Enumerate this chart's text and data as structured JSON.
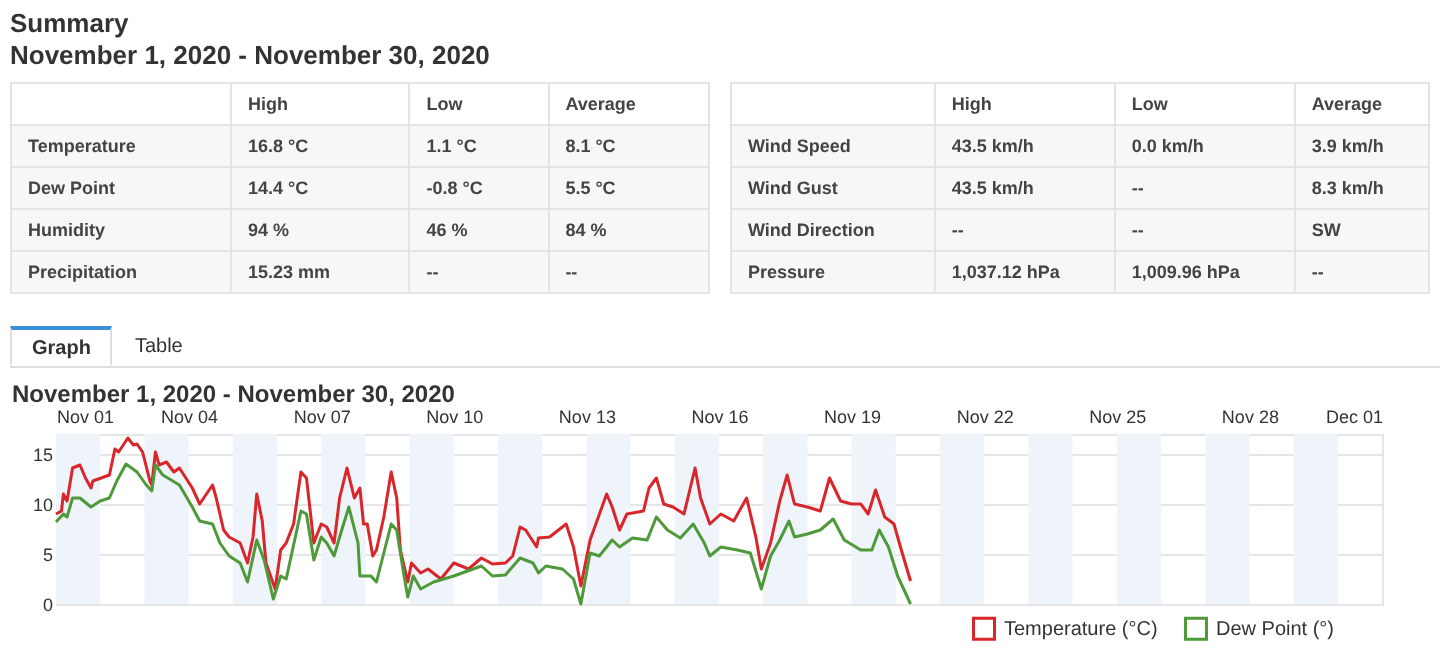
{
  "chart_data": [
    {
      "type": "other",
      "title": "Summary",
      "subtitle": "November 1, 2020 - November 30, 2020",
      "annotations": [
        "High",
        "Low",
        "Average",
        "Temperature",
        "16.8 °C",
        "1.1 °C",
        "8.1 °C",
        "Dew Point",
        "14.4 °C",
        "-0.8 °C",
        "5.5 °C",
        "Humidity",
        "94 %",
        "46 %",
        "84 %",
        "Precipitation",
        "15.23 mm",
        "--",
        "--",
        "High",
        "Low",
        "Average",
        "Wind Speed",
        "43.5 km/h",
        "0.0 km/h",
        "3.9 km/h",
        "Wind Gust",
        "43.5 km/h",
        "--",
        "8.3 km/h",
        "Wind Direction",
        "--",
        "--",
        "SW",
        "Pressure",
        "1,037.12 hPa",
        "1,009.96 hPa",
        "--"
      ]
    },
    {
      "type": "line",
      "title": "November 1, 2020 - November 30, 2020",
      "annotations": [
        "Graph",
        "Table"
      ],
      "xlim": [
        "2020-11-01T00:00",
        "2020-12-01T00:00"
      ],
      "xticks": [
        {
          "value": "2020-11-01T00:00",
          "label": "Nov 01"
        },
        {
          "value": "2020-11-04T00:00",
          "label": "Nov 04"
        },
        {
          "value": "2020-11-07T00:00",
          "label": "Nov 07"
        },
        {
          "value": "2020-11-10T00:00",
          "label": "Nov 10"
        },
        {
          "value": "2020-11-13T00:00",
          "label": "Nov 13"
        },
        {
          "value": "2020-11-16T00:00",
          "label": "Nov 16"
        },
        {
          "value": "2020-11-19T00:00",
          "label": "Nov 19"
        },
        {
          "value": "2020-11-22T00:00",
          "label": "Nov 22"
        },
        {
          "value": "2020-11-25T00:00",
          "label": "Nov 25"
        },
        {
          "value": "2020-11-28T00:00",
          "label": "Nov 28"
        },
        {
          "value": "2020-12-01T00:00",
          "label": "Dec 01"
        }
      ],
      "ylim": [
        0,
        17
      ],
      "yticks": [
        0,
        5,
        10,
        15
      ],
      "grid": "y",
      "legend": "bottom right",
      "marker": "none",
      "line_style": "solid",
      "bands": [
        {
          "axis": "x",
          "from": "2020-11-01T00:00",
          "to": "2020-11-02T00:00",
          "color": "#eef4fa"
        },
        {
          "axis": "x",
          "from": "2020-11-03T00:00",
          "to": "2020-11-04T00:00",
          "color": "#eef4fa"
        },
        {
          "axis": "x",
          "from": "2020-11-05T00:00",
          "to": "2020-11-06T00:00",
          "color": "#eef4fa"
        },
        {
          "axis": "x",
          "from": "2020-11-07T00:00",
          "to": "2020-11-08T00:00",
          "color": "#eef4fa"
        },
        {
          "axis": "x",
          "from": "2020-11-09T00:00",
          "to": "2020-11-10T00:00",
          "color": "#eef4fa"
        },
        {
          "axis": "x",
          "from": "2020-11-11T00:00",
          "to": "2020-11-12T00:00",
          "color": "#eef4fa"
        },
        {
          "axis": "x",
          "from": "2020-11-13T00:00",
          "to": "2020-11-14T00:00",
          "color": "#eef4fa"
        },
        {
          "axis": "x",
          "from": "2020-11-15T00:00",
          "to": "2020-11-16T00:00",
          "color": "#eef4fa"
        },
        {
          "axis": "x",
          "from": "2020-11-17T00:00",
          "to": "2020-11-18T00:00",
          "color": "#eef4fa"
        },
        {
          "axis": "x",
          "from": "2020-11-19T00:00",
          "to": "2020-11-20T00:00",
          "color": "#eef4fa"
        },
        {
          "axis": "x",
          "from": "2020-11-21T00:00",
          "to": "2020-11-22T00:00",
          "color": "#eef4fa"
        },
        {
          "axis": "x",
          "from": "2020-11-23T00:00",
          "to": "2020-11-24T00:00",
          "color": "#eef4fa"
        },
        {
          "axis": "x",
          "from": "2020-11-25T00:00",
          "to": "2020-11-26T00:00",
          "color": "#eef4fa"
        },
        {
          "axis": "x",
          "from": "2020-11-27T00:00",
          "to": "2020-11-28T00:00",
          "color": "#eef4fa"
        },
        {
          "axis": "x",
          "from": "2020-11-29T00:00",
          "to": "2020-11-30T00:00",
          "color": "#eef4fa"
        }
      ],
      "series": [
        {
          "name": "Temperature (°C)",
          "color": "#d9262b",
          "x": [
            "2020-11-01T00:00",
            "2020-11-01T03:00",
            "2020-11-01T04:00",
            "2020-11-01T06:00",
            "2020-11-01T09:00",
            "2020-11-01T13:00",
            "2020-11-01T16:00",
            "2020-11-01T19:00",
            "2020-11-01T20:00",
            "2020-11-02T05:00",
            "2020-11-02T08:00",
            "2020-11-02T10:00",
            "2020-11-02T15:00",
            "2020-11-02T18:00",
            "2020-11-02T20:00",
            "2020-11-02T23:00",
            "2020-11-03T03:00",
            "2020-11-03T04:00",
            "2020-11-03T06:00",
            "2020-11-03T08:00",
            "2020-11-03T12:00",
            "2020-11-03T16:00",
            "2020-11-03T19:00",
            "2020-11-04T02:00",
            "2020-11-04T06:00",
            "2020-11-04T13:00",
            "2020-11-04T15:00",
            "2020-11-04T19:00",
            "2020-11-04T22:00",
            "2020-11-05T04:00",
            "2020-11-05T08:00",
            "2020-11-05T11:00",
            "2020-11-05T13:00",
            "2020-11-05T16:00",
            "2020-11-05T18:00",
            "2020-11-05T23:00",
            "2020-11-06T02:00",
            "2020-11-06T05:00",
            "2020-11-06T09:00",
            "2020-11-06T13:00",
            "2020-11-06T16:00",
            "2020-11-06T20:00",
            "2020-11-07T00:00",
            "2020-11-07T03:00",
            "2020-11-07T07:00",
            "2020-11-07T10:00",
            "2020-11-07T14:00",
            "2020-11-07T18:00",
            "2020-11-07T21:00",
            "2020-11-07T23:00",
            "2020-11-08T01:00",
            "2020-11-08T04:00",
            "2020-11-08T06:00",
            "2020-11-08T10:00",
            "2020-11-08T14:00",
            "2020-11-08T17:00",
            "2020-11-08T19:00",
            "2020-11-08T23:00",
            "2020-11-09T01:00",
            "2020-11-09T06:00",
            "2020-11-09T10:00",
            "2020-11-09T17:00",
            "2020-11-10T00:00",
            "2020-11-10T08:00",
            "2020-11-10T15:00",
            "2020-11-10T21:00",
            "2020-11-11T04:00",
            "2020-11-11T08:00",
            "2020-11-11T12:00",
            "2020-11-11T15:00",
            "2020-11-11T21:00",
            "2020-11-11T22:00",
            "2020-11-12T04:00",
            "2020-11-12T13:00",
            "2020-11-12T17:00",
            "2020-11-12T21:00",
            "2020-11-13T02:00",
            "2020-11-13T11:00",
            "2020-11-13T14:00",
            "2020-11-13T18:00",
            "2020-11-13T22:00",
            "2020-11-14T07:00",
            "2020-11-14T10:00",
            "2020-11-14T14:00",
            "2020-11-14T18:00",
            "2020-11-14T23:00",
            "2020-11-15T05:00",
            "2020-11-15T11:00",
            "2020-11-15T14:00",
            "2020-11-15T19:00",
            "2020-11-16T01:00",
            "2020-11-16T08:00",
            "2020-11-16T15:00",
            "2020-11-16T20:00",
            "2020-11-16T23:00",
            "2020-11-17T04:00",
            "2020-11-17T09:00",
            "2020-11-17T13:00",
            "2020-11-17T17:00",
            "2020-11-18T00:00",
            "2020-11-18T07:00",
            "2020-11-18T12:00",
            "2020-11-18T18:00",
            "2020-11-19T00:00",
            "2020-11-19T05:00",
            "2020-11-19T09:00",
            "2020-11-19T13:00",
            "2020-11-19T18:00",
            "2020-11-19T23:00",
            "2020-11-20T03:00",
            "2020-11-20T08:00"
          ],
          "values": [
            9.0,
            9.3,
            11,
            10.3,
            13.6,
            13.9,
            12.6,
            11.6,
            12.3,
            12.9,
            15.5,
            15.2,
            16.6,
            15.9,
            16,
            15.2,
            12.3,
            11.9,
            15.2,
            13.9,
            14.2,
            13.2,
            13.6,
            11.6,
            10,
            11.9,
            10.6,
            7.4,
            6.7,
            6.1,
            4.1,
            6.7,
            11,
            8.3,
            4.1,
            1.5,
            5.4,
            6.1,
            8,
            13.2,
            12.6,
            6.1,
            8,
            7.7,
            6.1,
            10.6,
            13.6,
            10.6,
            11.6,
            8,
            8,
            4.8,
            5.4,
            8.7,
            13.2,
            10.6,
            5.4,
            2.2,
            4.1,
            3.1,
            3.5,
            2.5,
            4.1,
            3.5,
            4.6,
            4.0,
            4.1,
            4.8,
            7.7,
            7.4,
            5.7,
            6.6,
            6.7,
            8,
            5.7,
            1.8,
            6.4,
            11,
            9.7,
            7.4,
            9,
            9.3,
            11.6,
            12.6,
            10,
            9.7,
            9,
            13.6,
            10.6,
            8,
            9,
            8.3,
            10.6,
            6.7,
            3.5,
            6.1,
            10.3,
            12.9,
            10,
            9.7,
            9.3,
            12.6,
            10.3,
            10,
            10,
            9,
            11.4,
            8.7,
            8,
            5.4,
            2.3
          ]
        },
        {
          "name": "Dew Point (°)",
          "color": "#4e9a3a",
          "x": [
            "2020-11-01T00:00",
            "2020-11-01T04:00",
            "2020-11-01T06:00",
            "2020-11-01T09:00",
            "2020-11-01T13:00",
            "2020-11-01T19:00",
            "2020-11-02T00:00",
            "2020-11-02T05:00",
            "2020-11-02T09:00",
            "2020-11-02T14:00",
            "2020-11-02T20:00",
            "2020-11-03T01:00",
            "2020-11-03T04:00",
            "2020-11-03T06:00",
            "2020-11-03T10:00",
            "2020-11-03T19:00",
            "2020-11-04T02:00",
            "2020-11-04T06:00",
            "2020-11-04T13:00",
            "2020-11-04T17:00",
            "2020-11-04T22:00",
            "2020-11-05T04:00",
            "2020-11-05T08:00",
            "2020-11-05T13:00",
            "2020-11-05T17:00",
            "2020-11-05T22:00",
            "2020-11-06T02:00",
            "2020-11-06T05:00",
            "2020-11-06T13:00",
            "2020-11-06T16:00",
            "2020-11-06T20:00",
            "2020-11-07T00:00",
            "2020-11-07T03:00",
            "2020-11-07T07:00",
            "2020-11-07T10:00",
            "2020-11-07T15:00",
            "2020-11-07T20:00",
            "2020-11-07T21:00",
            "2020-11-08T03:00",
            "2020-11-08T06:00",
            "2020-11-08T14:00",
            "2020-11-08T17:00",
            "2020-11-08T21:00",
            "2020-11-08T23:00",
            "2020-11-09T02:00",
            "2020-11-09T06:00",
            "2020-11-09T13:00",
            "2020-11-10T00:00",
            "2020-11-10T15:00",
            "2020-11-10T21:00",
            "2020-11-11T04:00",
            "2020-11-11T12:00",
            "2020-11-11T19:00",
            "2020-11-11T22:00",
            "2020-11-12T02:00",
            "2020-11-12T11:00",
            "2020-11-12T17:00",
            "2020-11-12T21:00",
            "2020-11-13T02:00",
            "2020-11-13T07:00",
            "2020-11-13T14:00",
            "2020-11-13T18:00",
            "2020-11-14T01:00",
            "2020-11-14T09:00",
            "2020-11-14T14:00",
            "2020-11-14T20:00",
            "2020-11-15T03:00",
            "2020-11-15T10:00",
            "2020-11-15T16:00",
            "2020-11-15T19:00",
            "2020-11-16T01:00",
            "2020-11-16T10:00",
            "2020-11-16T17:00",
            "2020-11-16T23:00",
            "2020-11-17T04:00",
            "2020-11-17T09:00",
            "2020-11-17T14:00",
            "2020-11-17T17:00",
            "2020-11-18T00:00",
            "2020-11-18T07:00",
            "2020-11-18T14:00",
            "2020-11-18T20:00",
            "2020-11-19T05:00",
            "2020-11-19T11:00",
            "2020-11-19T15:00",
            "2020-11-19T20:00",
            "2020-11-20T01:00",
            "2020-11-20T08:00"
          ],
          "values": [
            8.2,
            9,
            8.7,
            10.6,
            10.6,
            9.7,
            10.3,
            10.6,
            12.3,
            14,
            13.2,
            11.9,
            11.3,
            13.9,
            12.9,
            11.9,
            9.7,
            8.3,
            8,
            6.1,
            4.8,
            4.1,
            2.2,
            6.4,
            4.4,
            0.5,
            2.8,
            2.5,
            9.3,
            9,
            4.4,
            6.7,
            6.1,
            4.8,
            6.7,
            9.7,
            6.1,
            2.8,
            2.8,
            2.2,
            8,
            7.4,
            2.8,
            0.7,
            2.8,
            1.5,
            2.2,
            2.8,
            3.8,
            2.8,
            2.9,
            4.6,
            4.1,
            3.1,
            3.8,
            3.5,
            2.5,
            0,
            5.1,
            4.8,
            6.4,
            5.7,
            6.6,
            6.4,
            8.7,
            7.4,
            6.6,
            8,
            6.1,
            4.8,
            5.7,
            5.4,
            5.1,
            1.5,
            4.8,
            6.4,
            8.3,
            6.7,
            7,
            7.4,
            8.5,
            6.4,
            5.4,
            5.4,
            7.4,
            5.7,
            2.8,
            0
          ]
        }
      ]
    }
  ]
}
